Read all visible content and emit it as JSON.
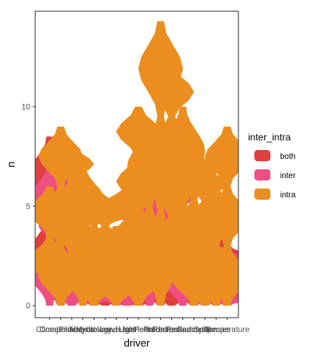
{
  "chart_data": {
    "type": "violin",
    "xlabel": "driver",
    "ylabel": "n",
    "ylim": [
      0,
      14.3
    ],
    "y_ticks": [
      "0",
      "5",
      "10"
    ],
    "y_tick_values": [
      0,
      5,
      10
    ],
    "grid": false,
    "legend_position": "right",
    "legend": {
      "title": "inter_intra",
      "entries": [
        {
          "name": "both",
          "color": "#E03F3F"
        },
        {
          "name": "inter",
          "color": "#EE4F83"
        },
        {
          "name": "intra",
          "color": "#EB8E1F"
        }
      ]
    },
    "categories": [
      "Climate",
      "Competition",
      "Fishing",
      "Habitat",
      "Hydrology",
      "Invasive",
      "Land use",
      "Light",
      "Nutrients",
      "Pollution",
      "Predation",
      "Recreation",
      "Resource",
      "Sediment",
      "Space",
      "Species",
      "Temperature"
    ],
    "series": [
      {
        "name": "both",
        "color": "#E03F3F",
        "points": [
          [
            0,
            0.5,
            8.5
          ],
          [
            1,
            0,
            6
          ],
          [
            2,
            0,
            5
          ],
          [
            3,
            0,
            4
          ],
          [
            4,
            0,
            2
          ],
          [
            5,
            0,
            3
          ],
          [
            6,
            0,
            1.5
          ],
          [
            7,
            0,
            1
          ],
          [
            8,
            0,
            2
          ],
          [
            9,
            0,
            3
          ],
          [
            10,
            0,
            5
          ],
          [
            11,
            0,
            4
          ],
          [
            12,
            0,
            4
          ],
          [
            13,
            0,
            3
          ],
          [
            14,
            0,
            5
          ],
          [
            15,
            0,
            2
          ],
          [
            16,
            0,
            3
          ]
        ]
      },
      {
        "name": "inter",
        "color": "#EE4F83",
        "points": [
          [
            0,
            0,
            7
          ],
          [
            1,
            1,
            7
          ],
          [
            2,
            0,
            6
          ],
          [
            3,
            1,
            4
          ],
          [
            4,
            0,
            3
          ],
          [
            5,
            1,
            3
          ],
          [
            6,
            0,
            2
          ],
          [
            7,
            0,
            4
          ],
          [
            8,
            1,
            5
          ],
          [
            9,
            0,
            6
          ],
          [
            10,
            2,
            8
          ],
          [
            11,
            1,
            6
          ],
          [
            12,
            0,
            5
          ],
          [
            13,
            1,
            4
          ],
          [
            14,
            0,
            4
          ],
          [
            15,
            1,
            3
          ],
          [
            16,
            0,
            2
          ]
        ]
      },
      {
        "name": "intra",
        "color": "#EB8E1F",
        "points": [
          [
            0,
            1,
            6
          ],
          [
            1,
            0,
            9
          ],
          [
            2,
            1,
            8
          ],
          [
            3,
            0,
            7
          ],
          [
            4,
            0,
            6
          ],
          [
            5,
            1,
            5
          ],
          [
            6,
            0,
            4
          ],
          [
            7,
            1,
            6
          ],
          [
            8,
            0,
            10
          ],
          [
            9,
            1,
            9
          ],
          [
            10,
            0,
            14.3
          ],
          [
            11,
            2,
            12
          ],
          [
            12,
            1,
            10
          ],
          [
            13,
            0,
            8
          ],
          [
            14,
            0,
            7
          ],
          [
            15,
            0,
            6
          ],
          [
            16,
            0,
            9
          ]
        ]
      }
    ]
  }
}
